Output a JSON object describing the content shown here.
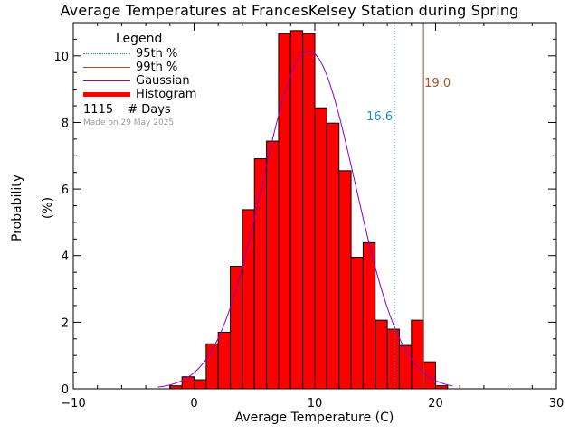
{
  "chart_data": {
    "type": "bar",
    "title": "Average Temperatures at FrancesKelsey Station during Spring",
    "xlabel": "Average Temperature (C)",
    "ylabel_lines": [
      "Probability",
      "(%)"
    ],
    "xlim": [
      -10,
      30
    ],
    "ylim": [
      0,
      11
    ],
    "x_ticks": [
      "−10",
      "0",
      "10",
      "20",
      "30"
    ],
    "x_tick_values": [
      -10,
      0,
      10,
      20,
      30
    ],
    "y_ticks": [
      "0",
      "2",
      "4",
      "6",
      "8",
      "10"
    ],
    "y_tick_values": [
      0,
      2,
      4,
      6,
      8,
      10
    ],
    "bin_width": 1,
    "bin_starts": [
      -2,
      -1,
      0,
      1,
      2,
      3,
      4,
      5,
      6,
      7,
      8,
      9,
      10,
      11,
      12,
      13,
      14,
      15,
      16,
      17,
      18,
      19,
      20
    ],
    "histogram_values": [
      0.09,
      0.36,
      0.27,
      1.35,
      1.7,
      3.68,
      5.38,
      6.91,
      7.44,
      10.67,
      10.76,
      10.67,
      8.44,
      7.98,
      6.55,
      3.95,
      4.39,
      2.06,
      1.79,
      1.3,
      2.06,
      0.81,
      0.09
    ],
    "gaussian": {
      "mean": 9.5,
      "sigma": 3.85,
      "peak": 10.15,
      "color": "#8a00c8"
    },
    "percentiles": [
      {
        "label": "95th %",
        "value": 16.6,
        "display": "16.6",
        "color": "#1e90c8",
        "style": "dotted"
      },
      {
        "label": "99th %",
        "value": 19.0,
        "display": "19.0",
        "color": "#a0522d",
        "style": "solid"
      }
    ],
    "legend": {
      "title": "Legend",
      "entries": [
        {
          "label": "95th %",
          "color": "#1e90c8",
          "style": "dotted"
        },
        {
          "label": "99th %",
          "color": "#a0522d",
          "style": "solid"
        },
        {
          "label": "Gaussian",
          "color": "#8a00c8",
          "style": "solid"
        },
        {
          "label": "Histogram",
          "color": "#ff0000",
          "style": "thick"
        }
      ],
      "days_count": "1115",
      "days_label": "# Days",
      "made_on": "Made on 29 May 2025",
      "placement": "top-left"
    },
    "bar_color": "#ff0000"
  }
}
